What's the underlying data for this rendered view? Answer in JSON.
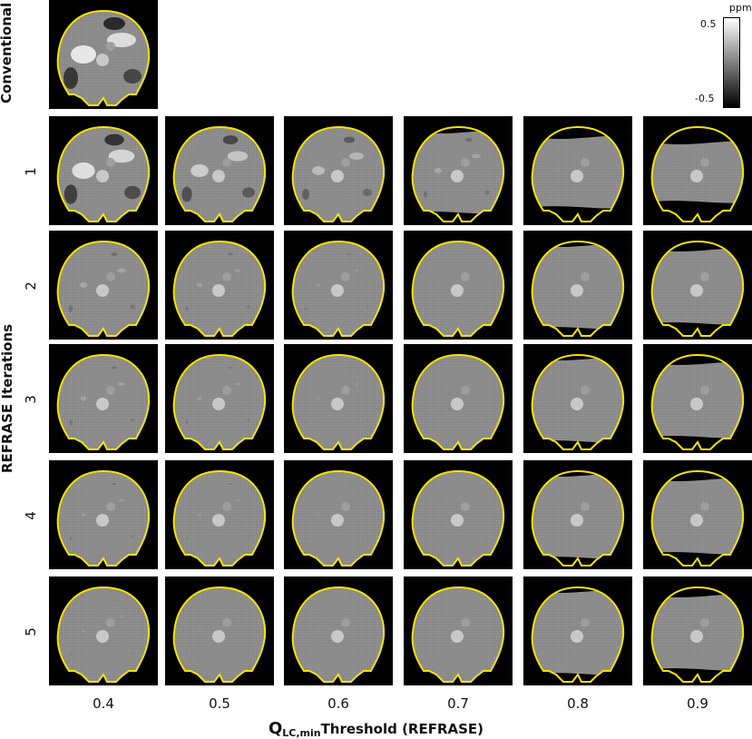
{
  "figure": {
    "conventional_label": "Conventional",
    "y_axis_title": "REFRASE Iterations",
    "x_axis_title": {
      "prefix": "Q",
      "subscript": "LC,min",
      "rest": "Threshold (REFRASE)"
    },
    "row_labels": [
      "1",
      "2",
      "3",
      "4",
      "5"
    ],
    "column_labels": [
      "0.4",
      "0.5",
      "0.6",
      "0.7",
      "0.8",
      "0.9"
    ],
    "colorbar": {
      "unit": "ppm",
      "max_label": "0.5",
      "min_label": "-0.5",
      "colormap": "grayscale"
    },
    "colors": {
      "boundary": "#f5e400",
      "background": "#000000",
      "tissue": "#8a8a8a"
    }
  }
}
